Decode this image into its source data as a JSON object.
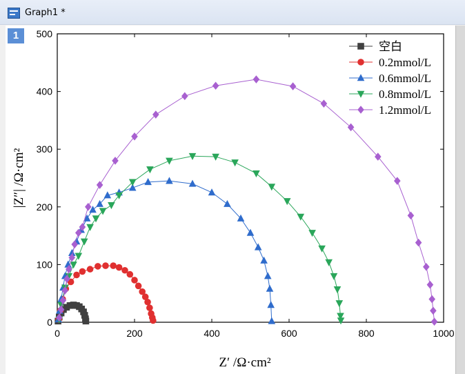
{
  "window": {
    "title": "Graph1 *",
    "layer_label": "1"
  },
  "chart_data": {
    "type": "scatter",
    "xlabel": "Z′ /Ω·cm²",
    "ylabel": "|Z″| /Ω·cm²",
    "xlim": [
      0,
      1000
    ],
    "ylim": [
      0,
      500
    ],
    "xticks": [
      0,
      200,
      400,
      600,
      800,
      1000
    ],
    "yticks": [
      0,
      100,
      200,
      300,
      400,
      500
    ],
    "grid": false,
    "legend_position": "top-right",
    "series": [
      {
        "name": "空白",
        "color": "#404040",
        "marker": "square",
        "points": [
          [
            2,
            2
          ],
          [
            5,
            9
          ],
          [
            10,
            16
          ],
          [
            16,
            22
          ],
          [
            24,
            26
          ],
          [
            33,
            29
          ],
          [
            42,
            30
          ],
          [
            50,
            29
          ],
          [
            57,
            27
          ],
          [
            63,
            23
          ],
          [
            68,
            18
          ],
          [
            71,
            12
          ],
          [
            73,
            6
          ],
          [
            74,
            2
          ]
        ]
      },
      {
        "name": "0.2mmol/L",
        "color": "#e03030",
        "marker": "circle",
        "points": [
          [
            4,
            5
          ],
          [
            8,
            20
          ],
          [
            14,
            40
          ],
          [
            22,
            58
          ],
          [
            35,
            70
          ],
          [
            50,
            82
          ],
          [
            65,
            88
          ],
          [
            85,
            92
          ],
          [
            105,
            97
          ],
          [
            125,
            98
          ],
          [
            145,
            98
          ],
          [
            160,
            95
          ],
          [
            175,
            90
          ],
          [
            188,
            83
          ],
          [
            200,
            73
          ],
          [
            210,
            63
          ],
          [
            220,
            53
          ],
          [
            228,
            44
          ],
          [
            234,
            35
          ],
          [
            239,
            25
          ],
          [
            243,
            15
          ],
          [
            246,
            8
          ],
          [
            248,
            3
          ]
        ]
      },
      {
        "name": "0.6mmol/L",
        "color": "#2f6ccc",
        "marker": "triangle-up",
        "points": [
          [
            3,
            5
          ],
          [
            6,
            20
          ],
          [
            10,
            40
          ],
          [
            15,
            60
          ],
          [
            20,
            80
          ],
          [
            28,
            100
          ],
          [
            38,
            120
          ],
          [
            50,
            140
          ],
          [
            62,
            160
          ],
          [
            77,
            180
          ],
          [
            92,
            195
          ],
          [
            110,
            205
          ],
          [
            130,
            220
          ],
          [
            160,
            225
          ],
          [
            195,
            233
          ],
          [
            235,
            243
          ],
          [
            290,
            245
          ],
          [
            350,
            240
          ],
          [
            400,
            225
          ],
          [
            440,
            205
          ],
          [
            475,
            180
          ],
          [
            500,
            155
          ],
          [
            520,
            130
          ],
          [
            535,
            107
          ],
          [
            545,
            80
          ],
          [
            550,
            58
          ],
          [
            553,
            30
          ],
          [
            555,
            2
          ]
        ]
      },
      {
        "name": "0.8mmol/L",
        "color": "#2aa65a",
        "marker": "triangle-down",
        "points": [
          [
            5,
            5
          ],
          [
            10,
            30
          ],
          [
            20,
            60
          ],
          [
            30,
            80
          ],
          [
            42,
            100
          ],
          [
            55,
            115
          ],
          [
            70,
            140
          ],
          [
            85,
            165
          ],
          [
            100,
            180
          ],
          [
            118,
            193
          ],
          [
            140,
            203
          ],
          [
            160,
            220
          ],
          [
            195,
            243
          ],
          [
            240,
            265
          ],
          [
            290,
            280
          ],
          [
            350,
            288
          ],
          [
            410,
            287
          ],
          [
            460,
            277
          ],
          [
            515,
            258
          ],
          [
            555,
            235
          ],
          [
            595,
            210
          ],
          [
            630,
            183
          ],
          [
            660,
            155
          ],
          [
            685,
            128
          ],
          [
            703,
            104
          ],
          [
            716,
            80
          ],
          [
            725,
            57
          ],
          [
            730,
            33
          ],
          [
            733,
            11
          ],
          [
            734,
            3
          ]
        ]
      },
      {
        "name": "1.2mmol/L",
        "color": "#a860d0",
        "marker": "diamond",
        "points": [
          [
            5,
            8
          ],
          [
            10,
            22
          ],
          [
            15,
            38
          ],
          [
            20,
            55
          ],
          [
            25,
            75
          ],
          [
            30,
            92
          ],
          [
            38,
            112
          ],
          [
            45,
            135
          ],
          [
            55,
            155
          ],
          [
            65,
            165
          ],
          [
            80,
            200
          ],
          [
            110,
            238
          ],
          [
            150,
            280
          ],
          [
            200,
            322
          ],
          [
            255,
            360
          ],
          [
            330,
            392
          ],
          [
            410,
            410
          ],
          [
            515,
            421
          ],
          [
            610,
            409
          ],
          [
            690,
            379
          ],
          [
            760,
            338
          ],
          [
            830,
            287
          ],
          [
            880,
            245
          ],
          [
            915,
            185
          ],
          [
            935,
            138
          ],
          [
            955,
            96
          ],
          [
            965,
            65
          ],
          [
            970,
            40
          ],
          [
            973,
            20
          ],
          [
            976,
            1
          ]
        ]
      }
    ]
  }
}
